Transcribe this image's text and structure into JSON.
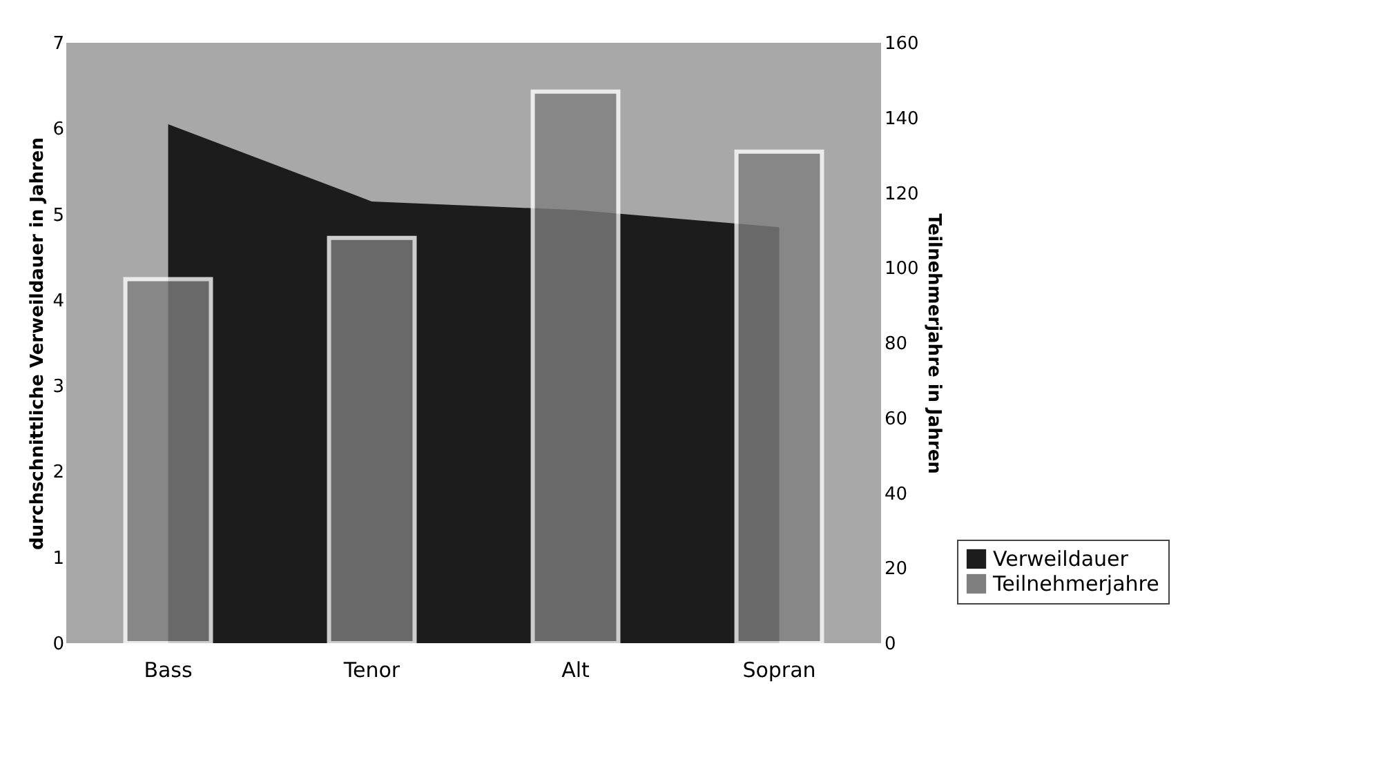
{
  "chart_data": {
    "type": "bar",
    "categories": [
      "Bass",
      "Tenor",
      "Alt",
      "Sopran"
    ],
    "series": [
      {
        "name": "Verweildauer",
        "type": "area",
        "color": "#1c1c1c",
        "values": [
          6.05,
          5.15,
          5.05,
          4.85
        ]
      },
      {
        "name": "Teilnehmerjahre",
        "axis": "y2",
        "color": "#7f7f7f",
        "values": [
          97,
          108,
          147,
          131
        ]
      }
    ],
    "ylabel": "durchschnittliche Verweildauer in Jahren",
    "y2label": "Teilnehmerjahre in Jahren",
    "ylim": [
      0,
      7
    ],
    "yticks": [
      0,
      1,
      2,
      3,
      4,
      5,
      6,
      7
    ],
    "y2lim": [
      0,
      160
    ],
    "y2ticks": [
      0,
      20,
      40,
      60,
      80,
      100,
      120,
      140,
      160
    ],
    "grid": false,
    "legend": "bottom right"
  }
}
